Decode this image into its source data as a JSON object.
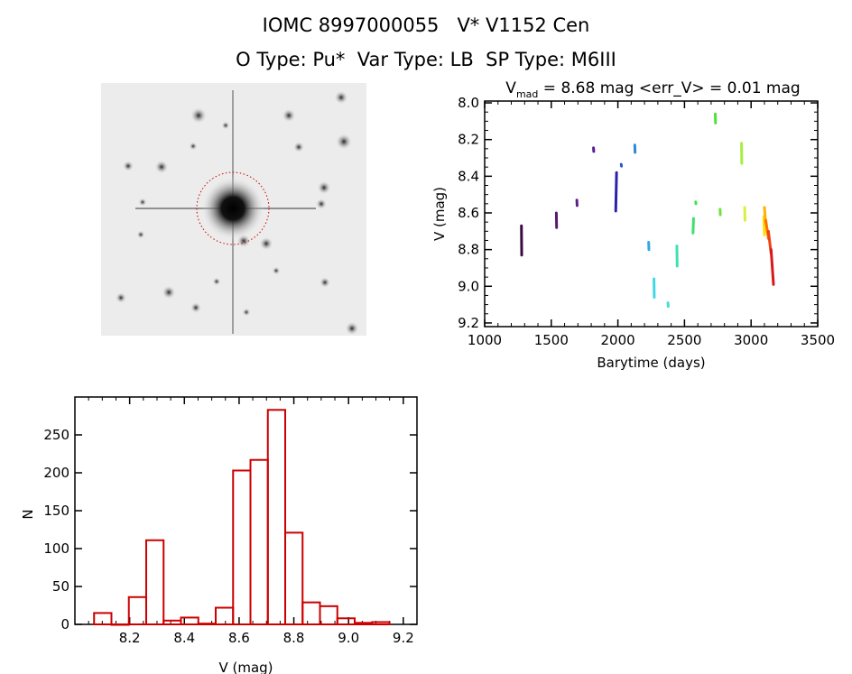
{
  "header": {
    "title": "IOMC 8997000055   V* V1152 Cen",
    "subtitle": "O Type: Pu*  Var Type: LB  SP Type: M6III"
  },
  "image_panel": {
    "description_icon": "sky-image-thumbnail",
    "marker_color": "#cc0000"
  },
  "chart_data": [
    {
      "type": "scatter",
      "title_parts": {
        "prefix": "V",
        "subscript": "mad",
        "suffix": " = 8.68 mag <err_V> = 0.01 mag"
      },
      "xlabel": "Barytime (days)",
      "ylabel": "V (mag)",
      "xlim": [
        1000,
        3500
      ],
      "ylim": [
        9.22,
        7.99
      ],
      "y_inverted": true,
      "xticks": [
        "1000",
        "1500",
        "2000",
        "2500",
        "3000",
        "3500"
      ],
      "yticks": [
        "8.0",
        "8.2",
        "8.4",
        "8.6",
        "8.8",
        "9.0",
        "9.2"
      ],
      "grid": false,
      "color_scale": "rainbow by time",
      "clumps": [
        {
          "x": [
            1276,
            1278
          ],
          "v": [
            8.67,
            8.83
          ],
          "color": "#3a0a40"
        },
        {
          "x": [
            1538,
            1540
          ],
          "v": [
            8.6,
            8.68
          ],
          "color": "#581a70"
        },
        {
          "x": [
            1692,
            1694
          ],
          "v": [
            8.53,
            8.56
          ],
          "color": "#5e2088"
        },
        {
          "x": [
            1817,
            1819
          ],
          "v": [
            8.245,
            8.265
          ],
          "color": "#5a1a92"
        },
        {
          "x": [
            1984,
            1990
          ],
          "v": [
            8.59,
            8.38
          ],
          "color": "#2a22a8"
        },
        {
          "x": [
            2025,
            2027
          ],
          "v": [
            8.335,
            8.345
          ],
          "color": "#2a58c8"
        },
        {
          "x": [
            2127,
            2129
          ],
          "v": [
            8.23,
            8.27
          ],
          "color": "#2a8ad8"
        },
        {
          "x": [
            2231,
            2233
          ],
          "v": [
            8.76,
            8.8
          ],
          "color": "#30a8e8"
        },
        {
          "x": [
            2271,
            2273
          ],
          "v": [
            8.96,
            9.06
          ],
          "color": "#40d8e8"
        },
        {
          "x": [
            2376,
            2378
          ],
          "v": [
            9.09,
            9.11
          ],
          "color": "#40e0d0"
        },
        {
          "x": [
            2443,
            2445
          ],
          "v": [
            8.78,
            8.89
          ],
          "color": "#40e0b0"
        },
        {
          "x": [
            2564,
            2568
          ],
          "v": [
            8.71,
            8.63
          ],
          "color": "#40e070"
        },
        {
          "x": [
            2584,
            2586
          ],
          "v": [
            8.54,
            8.55
          ],
          "color": "#40e050"
        },
        {
          "x": [
            2731,
            2733
          ],
          "v": [
            8.06,
            8.11
          ],
          "color": "#50e040"
        },
        {
          "x": [
            2767,
            2769
          ],
          "v": [
            8.58,
            8.61
          ],
          "color": "#70e040"
        },
        {
          "x": [
            2928,
            2930
          ],
          "v": [
            8.22,
            8.33
          ],
          "color": "#a8ee40"
        },
        {
          "x": [
            2952,
            2954
          ],
          "v": [
            8.57,
            8.64
          ],
          "color": "#d8f040"
        },
        {
          "x": [
            3095,
            3100
          ],
          "v": [
            8.62,
            8.72
          ],
          "color": "#ffe000"
        },
        {
          "x": [
            3100,
            3110
          ],
          "v": [
            8.57,
            8.66
          ],
          "color": "#ffb000"
        },
        {
          "x": [
            3110,
            3130
          ],
          "v": [
            8.64,
            8.74
          ],
          "color": "#ff7000"
        },
        {
          "x": [
            3130,
            3150
          ],
          "v": [
            8.7,
            8.82
          ],
          "color": "#f04010"
        },
        {
          "x": [
            3150,
            3168
          ],
          "v": [
            8.8,
            8.99
          ],
          "color": "#d81818"
        }
      ]
    },
    {
      "type": "bar",
      "subtype": "histogram",
      "xlabel": "V (mag)",
      "ylabel": "N",
      "xlim": [
        8.0,
        9.25
      ],
      "ylim": [
        0,
        300
      ],
      "xticks": [
        "8.2",
        "8.4",
        "8.6",
        "8.8",
        "9.0",
        "9.2"
      ],
      "yticks": [
        "0",
        "50",
        "100",
        "150",
        "200",
        "250"
      ],
      "grid": false,
      "bar_color": "#cc0000",
      "bin_start": 8.07,
      "bin_width": 0.0635,
      "values": [
        15,
        0,
        36,
        111,
        5,
        9,
        1,
        22,
        203,
        217,
        283,
        121,
        29,
        24,
        8,
        2,
        3
      ]
    }
  ]
}
